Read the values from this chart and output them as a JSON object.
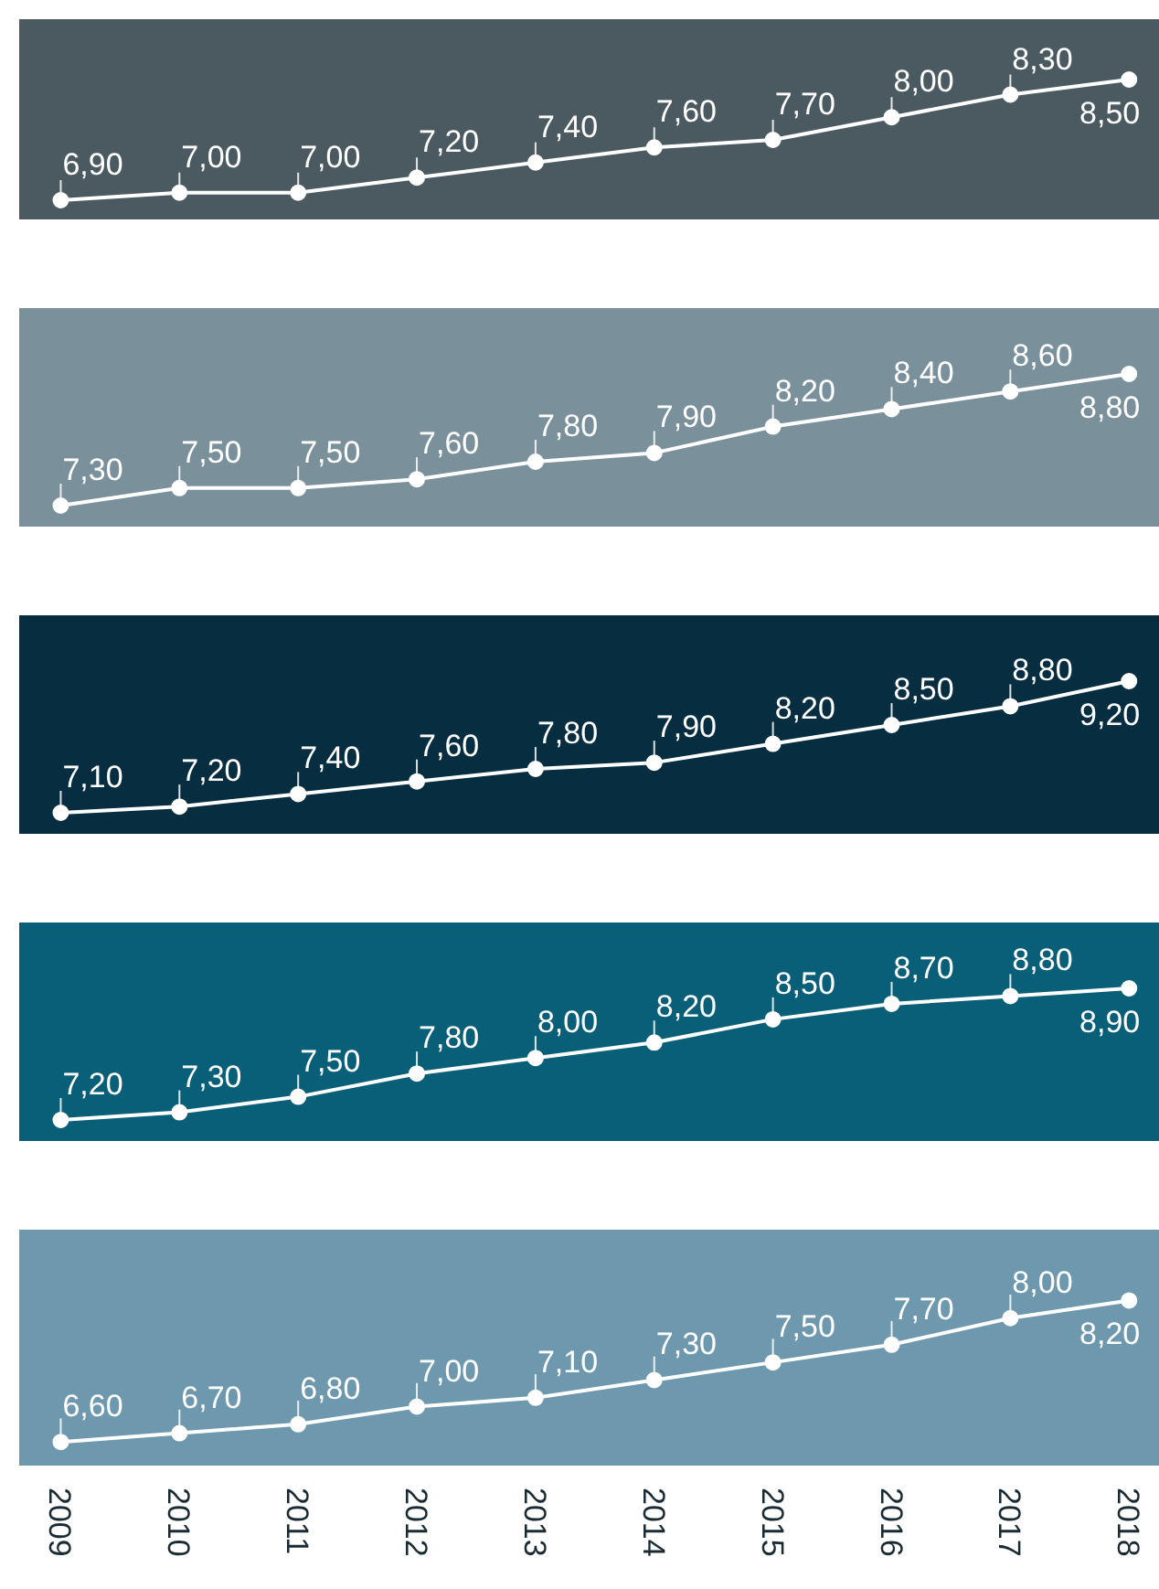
{
  "chart_data": [
    {
      "type": "line",
      "categories": [
        "2009",
        "2010",
        "2011",
        "2012",
        "2013",
        "2014",
        "2015",
        "2016",
        "2017",
        "2018"
      ],
      "series": [
        {
          "color": "#ffffff",
          "values": [
            6.9,
            7.0,
            7.0,
            7.2,
            7.4,
            7.6,
            7.7,
            8.0,
            8.3,
            8.5
          ],
          "value_labels": [
            "6,90",
            "7,00",
            "7,00",
            "7,20",
            "7,40",
            "7,60",
            "7,70",
            "8,00",
            "8,30",
            "8,50"
          ]
        }
      ],
      "marker": "circle",
      "line_style": "solid",
      "tick_labels": false
    },
    {
      "type": "line",
      "categories": [
        "2009",
        "2010",
        "2011",
        "2012",
        "2013",
        "2014",
        "2015",
        "2016",
        "2017",
        "2018"
      ],
      "series": [
        {
          "color": "#ffffff",
          "values": [
            7.3,
            7.5,
            7.5,
            7.6,
            7.8,
            7.9,
            8.2,
            8.4,
            8.6,
            8.8
          ],
          "value_labels": [
            "7,30",
            "7,50",
            "7,50",
            "7,60",
            "7,80",
            "7,90",
            "8,20",
            "8,40",
            "8,60",
            "8,80"
          ]
        }
      ],
      "marker": "circle",
      "line_style": "solid",
      "tick_labels": false
    },
    {
      "type": "line",
      "categories": [
        "2009",
        "2010",
        "2011",
        "2012",
        "2013",
        "2014",
        "2015",
        "2016",
        "2017",
        "2018"
      ],
      "series": [
        {
          "color": "#ffffff",
          "values": [
            7.1,
            7.2,
            7.4,
            7.6,
            7.8,
            7.9,
            8.2,
            8.5,
            8.8,
            9.2
          ],
          "value_labels": [
            "7,10",
            "7,20",
            "7,40",
            "7,60",
            "7,80",
            "7,90",
            "8,20",
            "8,50",
            "8,80",
            "9,20"
          ]
        }
      ],
      "marker": "circle",
      "line_style": "solid",
      "tick_labels": false
    },
    {
      "type": "line",
      "categories": [
        "2009",
        "2010",
        "2011",
        "2012",
        "2013",
        "2014",
        "2015",
        "2016",
        "2017",
        "2018"
      ],
      "series": [
        {
          "color": "#ffffff",
          "values": [
            7.2,
            7.3,
            7.5,
            7.8,
            8.0,
            8.2,
            8.5,
            8.7,
            8.8,
            8.9
          ],
          "value_labels": [
            "7,20",
            "7,30",
            "7,50",
            "7,80",
            "8,00",
            "8,20",
            "8,50",
            "8,70",
            "8,80",
            "8,90"
          ]
        }
      ],
      "marker": "circle",
      "line_style": "solid",
      "tick_labels": false
    },
    {
      "type": "line",
      "categories": [
        "2009",
        "2010",
        "2011",
        "2012",
        "2013",
        "2014",
        "2015",
        "2016",
        "2017",
        "2018"
      ],
      "series": [
        {
          "color": "#ffffff",
          "values": [
            6.6,
            6.7,
            6.8,
            7.0,
            7.1,
            7.3,
            7.5,
            7.7,
            8.0,
            8.2
          ],
          "value_labels": [
            "6,60",
            "6,70",
            "6,80",
            "7,00",
            "7,10",
            "7,30",
            "7,50",
            "7,70",
            "8,00",
            "8,20"
          ]
        }
      ],
      "marker": "circle",
      "line_style": "solid",
      "tick_labels": "x"
    }
  ]
}
